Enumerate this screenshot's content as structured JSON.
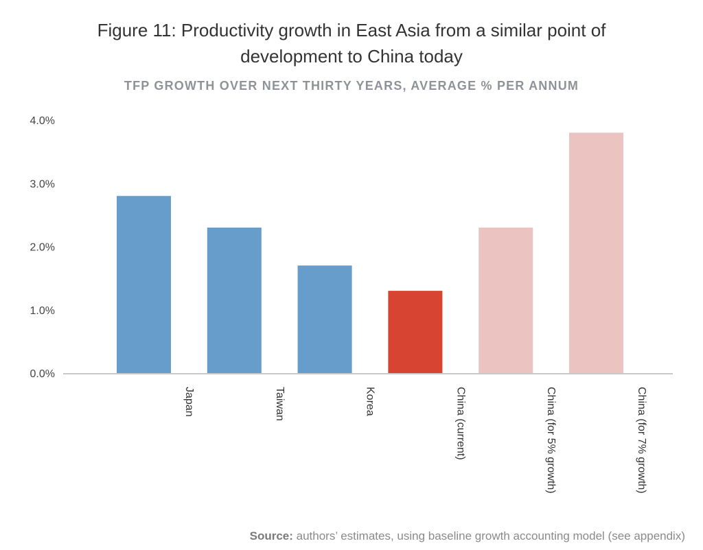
{
  "title_line1": "Figure 11: Productivity growth in East Asia from a similar point of",
  "title_line2": "development to China today",
  "source_label": "Source:",
  "source_text": " authors’ estimates, using baseline growth accounting model (see appendix)",
  "chart_data": {
    "type": "bar",
    "title": "Figure 11: Productivity growth in East Asia from a similar point of development to China today",
    "subtitle": "TFP GROWTH OVER NEXT THIRTY YEARS, AVERAGE % PER ANNUM",
    "categories": [
      "Japan",
      "Taiwan",
      "Korea",
      "China (current)",
      "China (for 5% growth)",
      "China (for 7% growth)"
    ],
    "values": [
      2.8,
      2.3,
      1.7,
      1.3,
      2.3,
      3.8
    ],
    "colors": [
      "#669dcb",
      "#669dcb",
      "#669dcb",
      "#d84432",
      "#ebc4c1",
      "#ebc4c1"
    ],
    "ylim": [
      0,
      4
    ],
    "yticks": [
      0,
      1,
      2,
      3,
      4
    ],
    "ytick_labels": [
      "0.0%",
      "1.0%",
      "2.0%",
      "3.0%",
      "4.0%"
    ],
    "xlabel": "",
    "ylabel": "",
    "grid": false,
    "legend": "none"
  }
}
